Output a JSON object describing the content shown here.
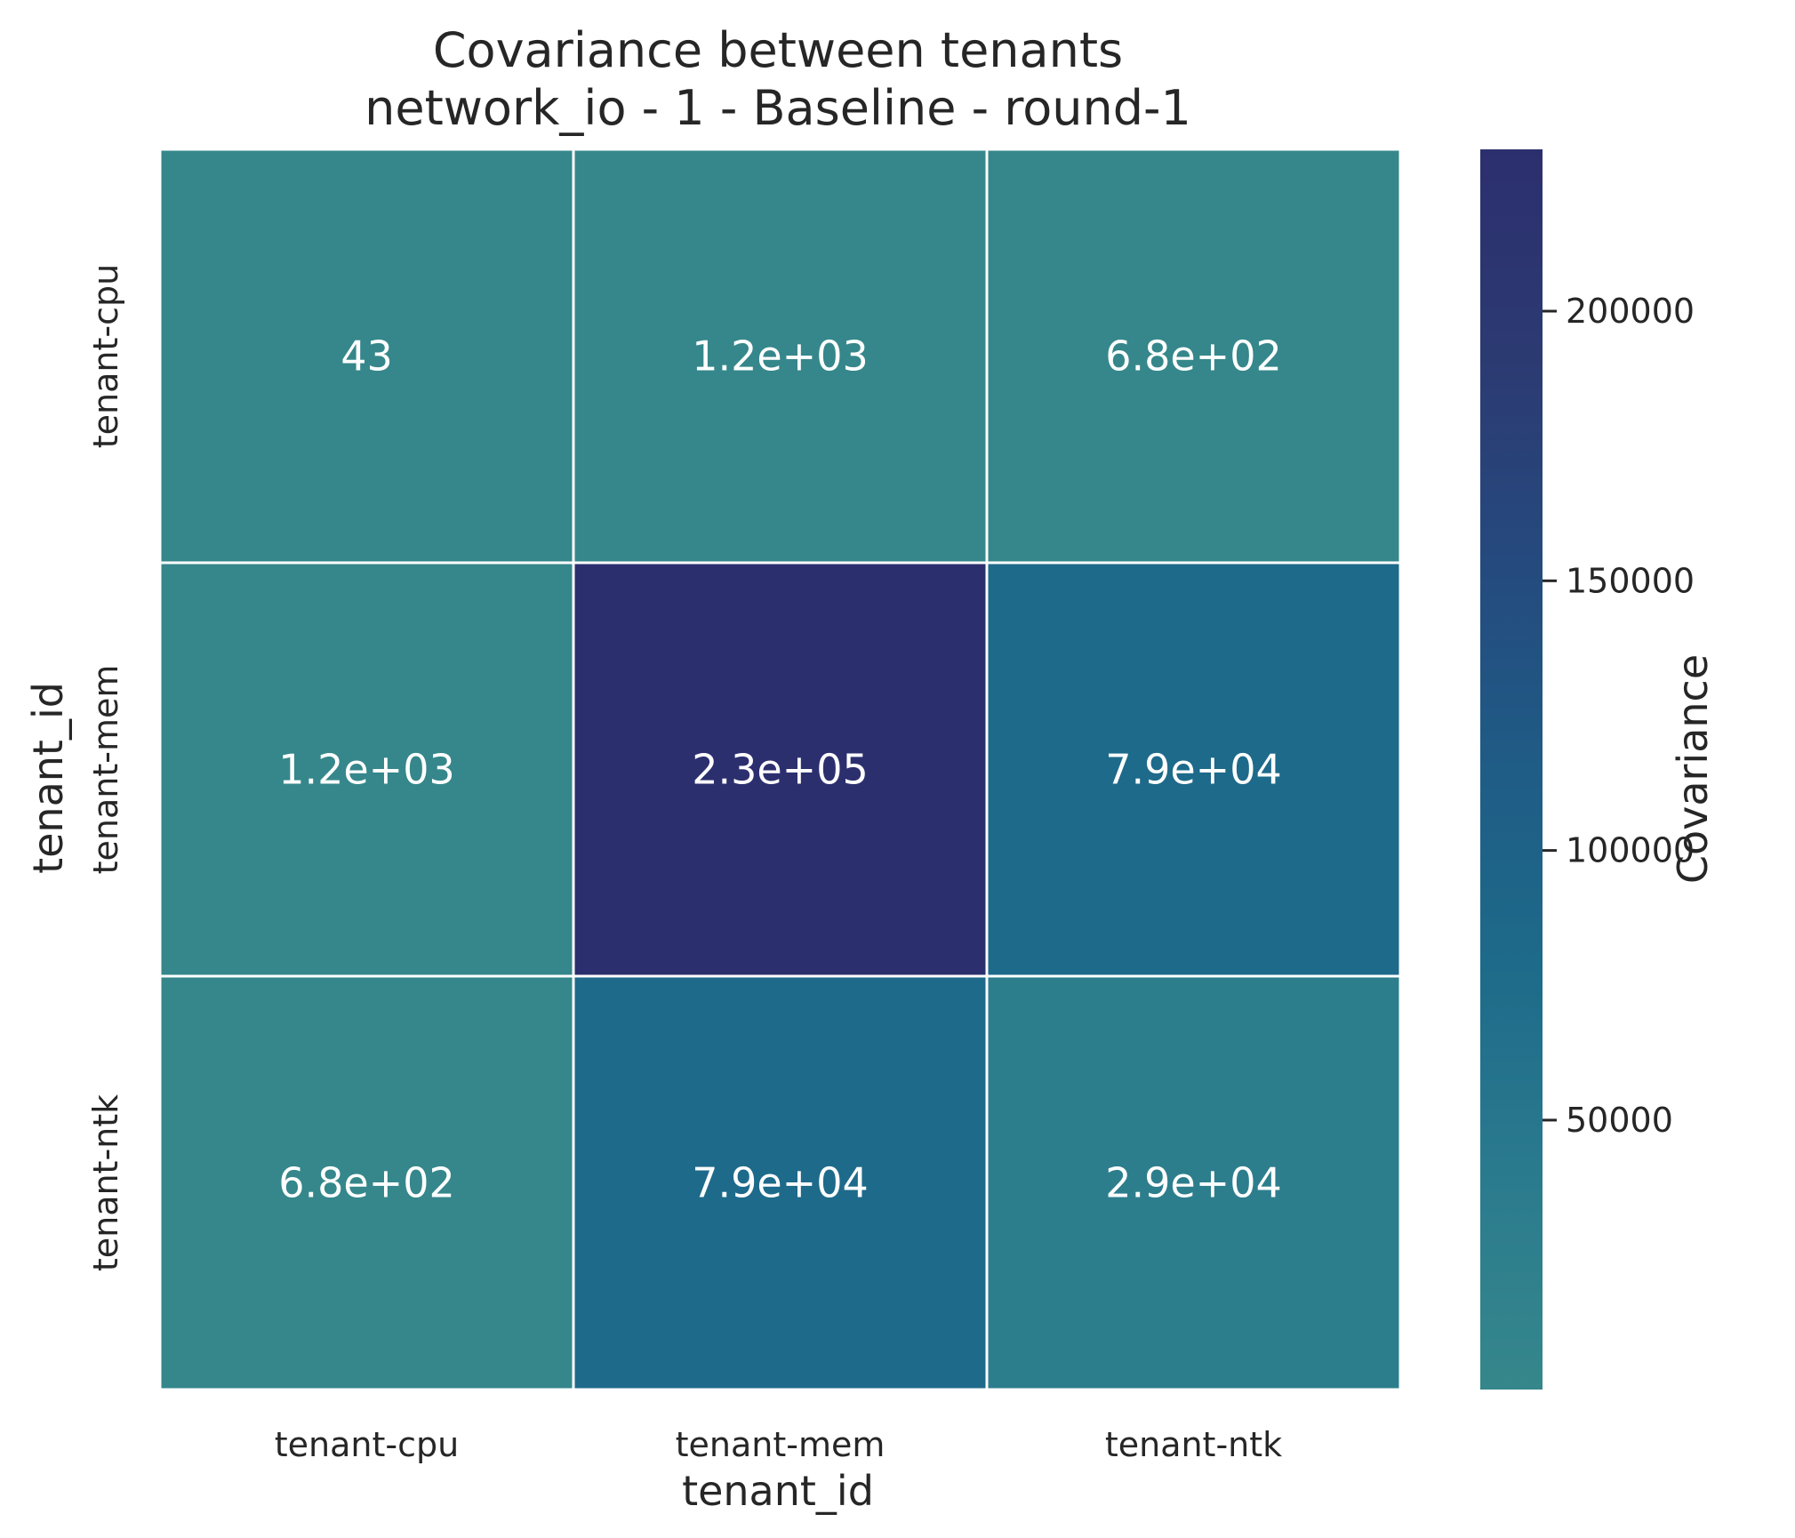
{
  "chart_data": {
    "type": "heatmap",
    "title": "Covariance between tenants",
    "subtitle": "network_io - 1 - Baseline - round-1",
    "xlabel": "tenant_id",
    "ylabel": "tenant_id",
    "x_categories": [
      "tenant-cpu",
      "tenant-mem",
      "tenant-ntk"
    ],
    "y_categories": [
      "tenant-cpu",
      "tenant-mem",
      "tenant-ntk"
    ],
    "values": [
      [
        43,
        1200,
        680
      ],
      [
        1200,
        230000,
        79000
      ],
      [
        680,
        79000,
        29000
      ]
    ],
    "annotations": [
      [
        "43",
        "1.2e+03",
        "6.8e+02"
      ],
      [
        "1.2e+03",
        "2.3e+05",
        "7.9e+04"
      ],
      [
        "6.8e+02",
        "7.9e+04",
        "2.9e+04"
      ]
    ],
    "colorbar": {
      "label": "Covariance",
      "range": [
        43,
        230000
      ],
      "ticks": [
        50000,
        100000,
        150000,
        200000
      ],
      "tick_labels": [
        "50000",
        "100000",
        "150000",
        "200000"
      ],
      "colors": [
        "#35878b",
        "#2b7b8e",
        "#1e6b8a",
        "#1f5c86",
        "#254a7e",
        "#2c3a72",
        "#2c2f6e"
      ]
    },
    "grid": false,
    "cell_border_color": "#ffffff"
  }
}
